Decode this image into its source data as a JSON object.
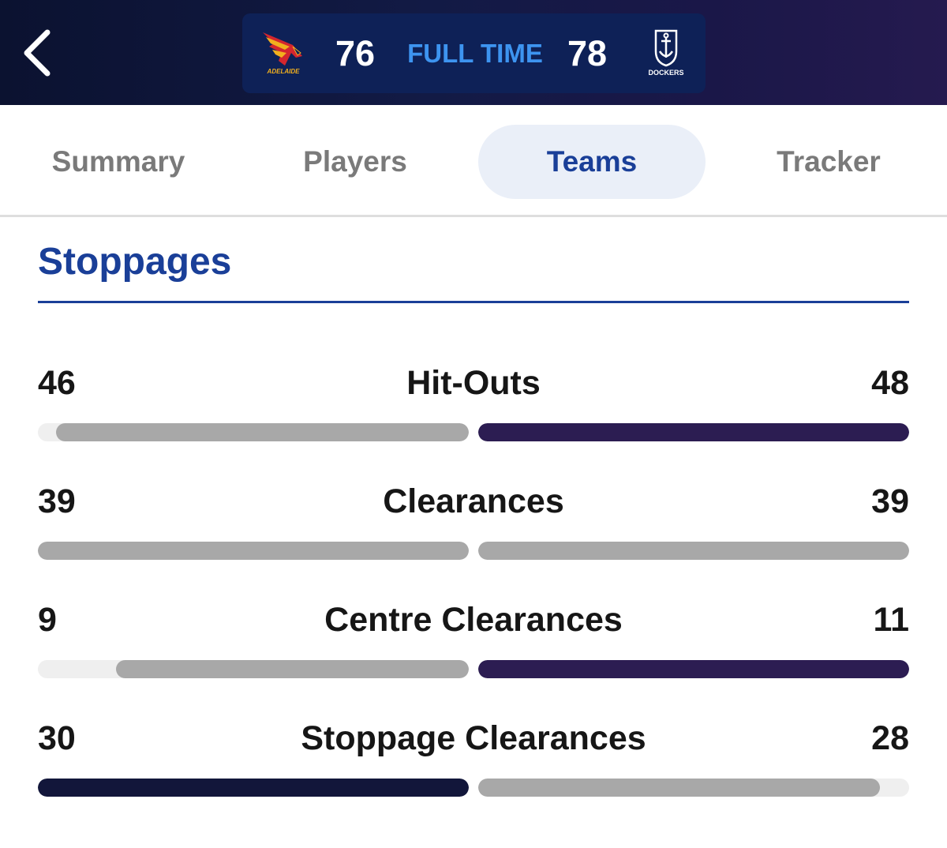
{
  "header": {
    "back_icon": "chevron-left-icon",
    "home_team": {
      "name": "ADELAIDE",
      "logo_icon": "crows-logo-icon",
      "score": "76"
    },
    "away_team": {
      "name": "DOCKERS",
      "logo_icon": "dockers-logo-icon",
      "score": "78"
    },
    "status": "FULL TIME"
  },
  "tabs": [
    {
      "label": "Summary",
      "active": false
    },
    {
      "label": "Players",
      "active": false
    },
    {
      "label": "Teams",
      "active": true
    },
    {
      "label": "Tracker",
      "active": false
    }
  ],
  "section": {
    "title": "Stoppages"
  },
  "colors": {
    "leader_home": "#12163a",
    "leader_away": "#2c1d52",
    "neutral": "#a8a8a8",
    "track": "#efefef",
    "accent": "#1a3f98",
    "status": "#3d94f0"
  },
  "stats": [
    {
      "label": "Hit-Outs",
      "home": "46",
      "away": "48",
      "home_pct": 95.8,
      "away_pct": 100,
      "leader": "away"
    },
    {
      "label": "Clearances",
      "home": "39",
      "away": "39",
      "home_pct": 100,
      "away_pct": 100,
      "leader": "none"
    },
    {
      "label": "Centre Clearances",
      "home": "9",
      "away": "11",
      "home_pct": 81.8,
      "away_pct": 100,
      "leader": "away"
    },
    {
      "label": "Stoppage Clearances",
      "home": "30",
      "away": "28",
      "home_pct": 100,
      "away_pct": 93.3,
      "leader": "home"
    }
  ]
}
